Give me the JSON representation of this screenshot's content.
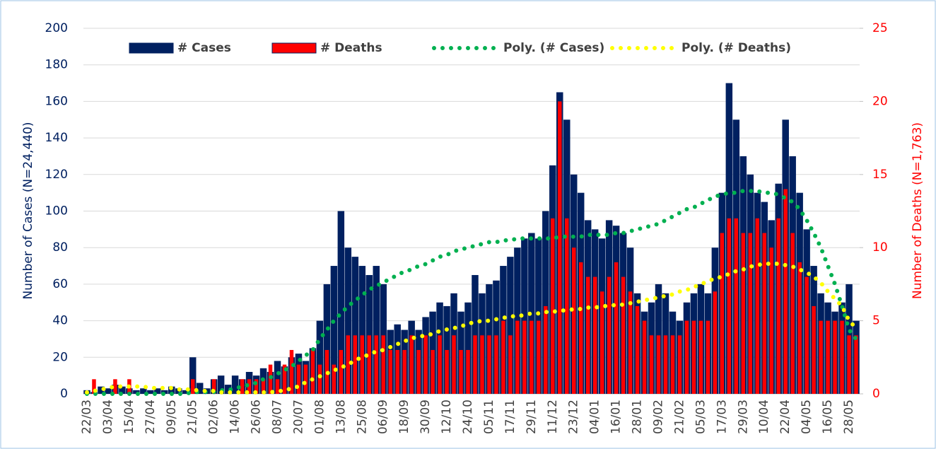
{
  "chart_data": {
    "type": "bar",
    "categories": [
      "22/03",
      null,
      null,
      "03/04",
      null,
      null,
      "15/04",
      null,
      null,
      "27/04",
      null,
      null,
      "09/05",
      null,
      null,
      "21/05",
      null,
      null,
      "02/06",
      null,
      null,
      "14/06",
      null,
      null,
      "26/06",
      null,
      null,
      "08/07",
      null,
      null,
      "20/07",
      null,
      null,
      "01/08",
      null,
      null,
      "13/08",
      null,
      null,
      "25/08",
      null,
      null,
      "06/09",
      null,
      null,
      "18/09",
      null,
      null,
      "30/09",
      null,
      null,
      "12/10",
      null,
      null,
      "24/10",
      null,
      null,
      "05/11",
      null,
      null,
      "17/11",
      null,
      null,
      "29/11",
      null,
      null,
      "11/12",
      null,
      null,
      "23/12",
      null,
      null,
      "04/01",
      null,
      null,
      "16/01",
      null,
      null,
      "28/01",
      null,
      null,
      "09/02",
      null,
      null,
      "21/02",
      null,
      null,
      "05/03",
      null,
      null,
      "17/03",
      null,
      null,
      "29/03",
      null,
      null,
      "10/04",
      null,
      null,
      "22/04",
      null,
      null,
      "04/05",
      null,
      null,
      "16/05",
      null,
      null,
      "28/05",
      null
    ],
    "series": [
      {
        "name": "# Cases",
        "color": "#002060",
        "kind": "bar",
        "values": [
          2,
          1,
          4,
          3,
          5,
          4,
          3,
          2,
          3,
          2,
          3,
          2,
          4,
          3,
          2,
          20,
          6,
          3,
          8,
          10,
          5,
          10,
          8,
          12,
          10,
          14,
          12,
          18,
          15,
          20,
          22,
          18,
          25,
          40,
          60,
          70,
          100,
          80,
          75,
          70,
          65,
          70,
          60,
          35,
          38,
          35,
          40,
          35,
          42,
          45,
          50,
          48,
          55,
          45,
          50,
          65,
          55,
          60,
          62,
          70,
          75,
          80,
          85,
          88,
          85,
          100,
          125,
          165,
          150,
          120,
          110,
          95,
          90,
          85,
          95,
          92,
          88,
          80,
          55,
          45,
          50,
          60,
          55,
          45,
          40,
          50,
          55,
          60,
          55,
          80,
          110,
          170,
          150,
          130,
          120,
          110,
          105,
          95,
          115,
          150,
          130,
          110,
          90,
          70,
          55,
          50,
          45,
          50,
          60,
          40
        ]
      },
      {
        "name": "# Deaths",
        "color": "#ff0000",
        "kind": "bar",
        "axis": "y2",
        "values": [
          0,
          1,
          0,
          0,
          1,
          0,
          1,
          0,
          0,
          0,
          0,
          0,
          0,
          0,
          0,
          1,
          0,
          0,
          1,
          0,
          0,
          0,
          1,
          1,
          1,
          1,
          2,
          1,
          2,
          3,
          2,
          2,
          3,
          2,
          3,
          2,
          3,
          4,
          4,
          4,
          4,
          4,
          4,
          3,
          3,
          3,
          4,
          3,
          4,
          3,
          4,
          3,
          4,
          3,
          3,
          4,
          4,
          4,
          4,
          5,
          4,
          5,
          5,
          5,
          5,
          6,
          12,
          20,
          12,
          10,
          9,
          8,
          8,
          7,
          8,
          9,
          8,
          7,
          6,
          5,
          4,
          4,
          4,
          4,
          4,
          5,
          5,
          5,
          5,
          7,
          11,
          12,
          12,
          11,
          11,
          12,
          11,
          10,
          12,
          14,
          11,
          9,
          8,
          6,
          5,
          5,
          5,
          5,
          4,
          4
        ]
      },
      {
        "name": "Poly. (# Cases)",
        "color": "#00b050",
        "kind": "dots",
        "values": [
          0,
          0,
          0,
          0,
          0,
          0,
          0,
          0,
          0,
          0,
          0,
          0,
          0,
          0,
          0,
          1,
          1,
          1,
          1,
          2,
          2,
          3,
          4,
          5,
          6,
          8,
          9,
          11,
          13,
          15,
          18,
          21,
          24,
          30,
          35,
          40,
          44,
          48,
          51,
          54,
          57,
          59,
          61,
          63,
          65,
          67,
          68,
          70,
          71,
          73,
          75,
          76,
          78,
          79,
          80,
          81,
          82,
          83,
          83,
          84,
          84,
          85,
          85,
          85,
          85,
          85,
          85,
          86,
          86,
          86,
          86,
          87,
          87,
          87,
          87,
          88,
          88,
          89,
          90,
          91,
          92,
          93,
          95,
          97,
          99,
          101,
          102,
          104,
          106,
          108,
          109,
          110,
          110,
          111,
          111,
          111,
          110,
          110,
          109,
          107,
          105,
          101,
          95,
          88,
          80,
          70,
          60,
          48,
          35,
          30
        ]
      },
      {
        "name": "Poly. (# Deaths)",
        "color": "#ffff00",
        "kind": "dots",
        "axis": "y2",
        "values": [
          0.1,
          0.2,
          0.3,
          0.4,
          0.5,
          0.5,
          0.5,
          0.5,
          0.5,
          0.4,
          0.4,
          0.4,
          0.4,
          0.3,
          0.3,
          0.3,
          0.2,
          0.2,
          0.2,
          0.1,
          0.1,
          0.1,
          0.1,
          0.1,
          0.1,
          0.1,
          0.1,
          0.2,
          0.2,
          0.4,
          0.5,
          0.8,
          1,
          1.2,
          1.4,
          1.6,
          1.8,
          2,
          2.3,
          2.5,
          2.7,
          2.9,
          3,
          3.2,
          3.4,
          3.6,
          3.8,
          3.9,
          4,
          4.1,
          4.3,
          4.4,
          4.5,
          4.6,
          4.8,
          4.9,
          5,
          5,
          5.1,
          5.2,
          5.3,
          5.3,
          5.4,
          5.5,
          5.5,
          5.6,
          5.6,
          5.7,
          5.7,
          5.8,
          5.8,
          5.9,
          5.9,
          6,
          6,
          6.1,
          6.1,
          6.2,
          6.3,
          6.4,
          6.5,
          6.6,
          6.7,
          6.8,
          7,
          7.1,
          7.3,
          7.5,
          7.7,
          7.9,
          8,
          8.2,
          8.4,
          8.5,
          8.7,
          8.8,
          8.9,
          8.9,
          8.9,
          8.8,
          8.7,
          8.5,
          8.3,
          8,
          7.6,
          7,
          6.5,
          6,
          5,
          4.5
        ]
      }
    ],
    "y_label": "Number of Cases (N=24,440)",
    "y2_label": "Number of Deaths (N=1,763)",
    "ylim": [
      0,
      200
    ],
    "yticks": [
      0,
      20,
      40,
      60,
      80,
      100,
      120,
      140,
      160,
      180,
      200
    ],
    "y2lim": [
      0,
      25
    ],
    "y2ticks": [
      0,
      5,
      10,
      15,
      20,
      25
    ],
    "grid": true,
    "legend": "top"
  }
}
